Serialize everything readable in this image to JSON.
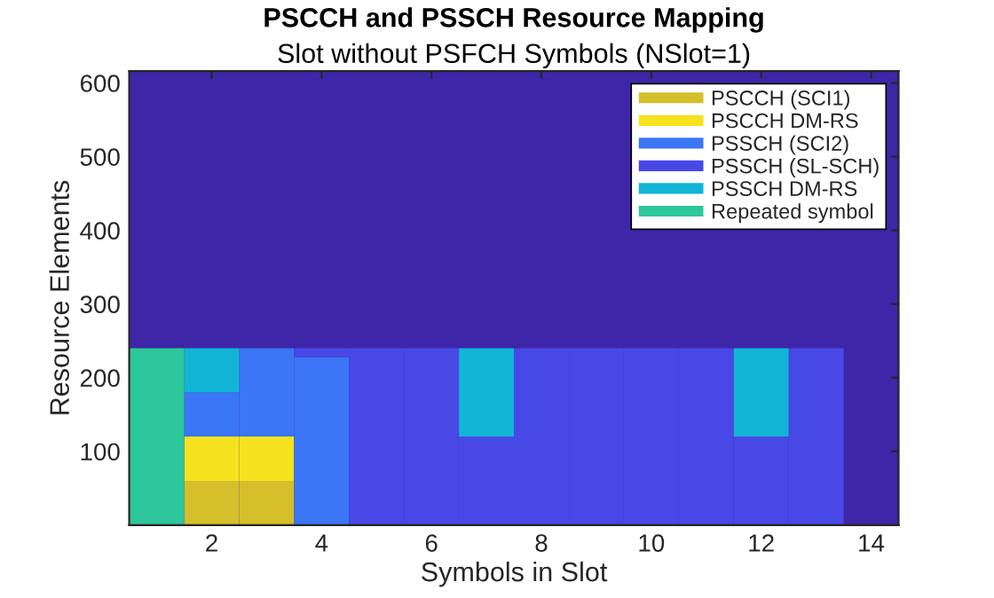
{
  "chart_data": {
    "type": "bar",
    "title": "PSCCH and PSSCH Resource Mapping",
    "subtitle": "Slot without PSFCH Symbols (NSlot=1)",
    "xlabel": "Symbols in Slot",
    "ylabel": "Resource Elements",
    "x": [
      1,
      2,
      3,
      4,
      5,
      6,
      7,
      8,
      9,
      10,
      11,
      12,
      13,
      14
    ],
    "stacked": true,
    "series": [
      {
        "name": "PSCCH (SCI1)",
        "color": "#d5bf2b",
        "values": [
          0,
          60,
          60,
          0,
          0,
          0,
          0,
          0,
          0,
          0,
          0,
          0,
          0,
          0
        ]
      },
      {
        "name": "PSCCH DM-RS",
        "color": "#f6e21f",
        "values": [
          0,
          60,
          60,
          0,
          0,
          0,
          0,
          0,
          0,
          0,
          0,
          0,
          0,
          0
        ]
      },
      {
        "name": "PSSCH (SCI2)",
        "color": "#3a76f5",
        "values": [
          0,
          60,
          120,
          228,
          0,
          0,
          0,
          0,
          0,
          0,
          0,
          0,
          0,
          0
        ]
      },
      {
        "name": "PSSCH (SL-SCH)",
        "color": "#4848e6",
        "values": [
          0,
          0,
          0,
          12,
          240,
          240,
          120,
          240,
          240,
          240,
          240,
          120,
          240,
          0
        ]
      },
      {
        "name": "PSSCH DM-RS",
        "color": "#12b5d6",
        "values": [
          0,
          60,
          0,
          0,
          0,
          0,
          120,
          0,
          0,
          0,
          0,
          120,
          0,
          0
        ]
      },
      {
        "name": "Repeated symbol",
        "color": "#2ec79b",
        "values": [
          240,
          0,
          0,
          0,
          0,
          0,
          0,
          0,
          0,
          0,
          0,
          0,
          0,
          0
        ]
      }
    ],
    "xlim": [
      0.5,
      14.5
    ],
    "xticks": [
      2,
      4,
      6,
      8,
      10,
      12,
      14
    ],
    "ylim": [
      0,
      616
    ],
    "yticks": [
      100,
      200,
      300,
      400,
      500,
      600
    ],
    "grid": false,
    "legend": "top right"
  }
}
